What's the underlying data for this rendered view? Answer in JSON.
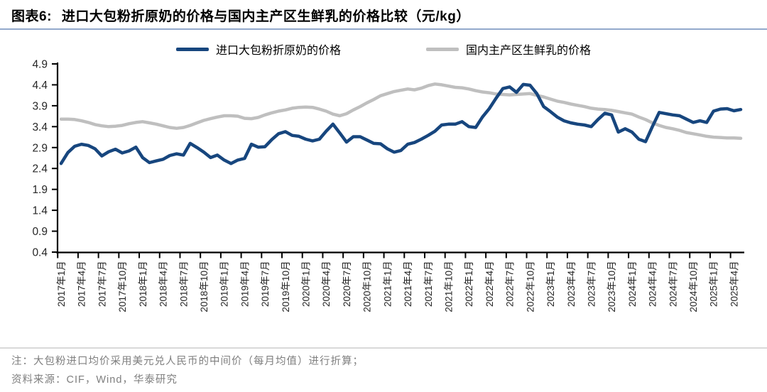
{
  "header": {
    "figure_label": "图表6:",
    "title": "进口大包粉折原奶的价格与国内主产区生鲜乳的价格比较（元/kg）"
  },
  "legend": {
    "import_label": "进口大包粉折原奶的价格",
    "domestic_label": "国内主产区生鲜乳的价格"
  },
  "colors": {
    "import_line": "#17467e",
    "domestic_line": "#bfbfbf",
    "axis": "#000000",
    "tick_text": "#262626",
    "title_underline": "#93a9cc",
    "footer_text": "#7f7f7f"
  },
  "footer": {
    "note": "注：大包粉进口均价采用美元兑人民币的中间价（每月均值）进行折算；",
    "source": "资料来源：CIF，Wind，华泰研究"
  },
  "chart_data": {
    "type": "line",
    "title": "进口大包粉折原奶的价格与国内主产区生鲜乳的价格比较（元/kg）",
    "x_unit": "month",
    "x_start": "2017-01",
    "x_end": "2025-05",
    "grid": false,
    "legend_position": "top",
    "ylim": [
      0.4,
      4.9
    ],
    "y_ticks": [
      4.9,
      4.4,
      3.9,
      3.4,
      2.9,
      2.4,
      1.9,
      1.4,
      0.9,
      0.4
    ],
    "x_tick_interval_months": 3,
    "x_tick_labels": [
      "2017年1月",
      "2017年4月",
      "2017年7月",
      "2017年10月",
      "2018年1月",
      "2018年4月",
      "2018年7月",
      "2018年10月",
      "2019年1月",
      "2019年4月",
      "2019年7月",
      "2019年10月",
      "2020年1月",
      "2020年4月",
      "2020年7月",
      "2020年10月",
      "2021年1月",
      "2021年4月",
      "2021年7月",
      "2021年10月",
      "2022年1月",
      "2022年4月",
      "2022年7月",
      "2022年10月",
      "2023年1月",
      "2023年4月",
      "2023年7月",
      "2023年10月",
      "2024年1月",
      "2024年4月",
      "2024年7月",
      "2024年10月",
      "2025年1月",
      "2025年4月"
    ],
    "series": [
      {
        "name": "进口大包粉折原奶的价格",
        "color": "#17467e",
        "line_width": 4.5,
        "values": [
          2.52,
          2.78,
          2.93,
          2.98,
          2.95,
          2.87,
          2.7,
          2.8,
          2.86,
          2.77,
          2.82,
          2.91,
          2.66,
          2.54,
          2.58,
          2.62,
          2.71,
          2.75,
          2.72,
          3.0,
          2.9,
          2.79,
          2.66,
          2.72,
          2.6,
          2.52,
          2.6,
          2.64,
          2.98,
          2.91,
          2.92,
          3.09,
          3.23,
          3.28,
          3.19,
          3.17,
          3.1,
          3.06,
          3.1,
          3.29,
          3.46,
          3.25,
          3.03,
          3.16,
          3.16,
          3.08,
          3.0,
          2.99,
          2.87,
          2.79,
          2.83,
          2.98,
          3.02,
          3.1,
          3.19,
          3.29,
          3.44,
          3.46,
          3.46,
          3.52,
          3.4,
          3.38,
          3.63,
          3.83,
          4.08,
          4.31,
          4.35,
          4.22,
          4.41,
          4.39,
          4.19,
          3.88,
          3.76,
          3.63,
          3.54,
          3.49,
          3.46,
          3.44,
          3.4,
          3.57,
          3.72,
          3.68,
          3.27,
          3.35,
          3.27,
          3.1,
          3.04,
          3.4,
          3.74,
          3.71,
          3.68,
          3.66,
          3.58,
          3.5,
          3.54,
          3.5,
          3.77,
          3.82,
          3.83,
          3.78,
          3.81
        ]
      },
      {
        "name": "国内主产区生鲜乳的价格",
        "color": "#bfbfbf",
        "line_width": 4.5,
        "values": [
          3.58,
          3.58,
          3.57,
          3.54,
          3.5,
          3.45,
          3.42,
          3.4,
          3.41,
          3.43,
          3.47,
          3.5,
          3.52,
          3.49,
          3.46,
          3.42,
          3.38,
          3.36,
          3.38,
          3.43,
          3.49,
          3.55,
          3.59,
          3.63,
          3.66,
          3.66,
          3.65,
          3.6,
          3.59,
          3.62,
          3.68,
          3.73,
          3.77,
          3.8,
          3.84,
          3.86,
          3.87,
          3.86,
          3.82,
          3.77,
          3.7,
          3.66,
          3.71,
          3.8,
          3.88,
          3.97,
          4.05,
          4.14,
          4.19,
          4.24,
          4.27,
          4.3,
          4.28,
          4.32,
          4.38,
          4.42,
          4.4,
          4.37,
          4.34,
          4.33,
          4.3,
          4.26,
          4.23,
          4.21,
          4.18,
          4.17,
          4.16,
          4.17,
          4.18,
          4.19,
          4.15,
          4.11,
          4.06,
          4.01,
          3.98,
          3.94,
          3.91,
          3.88,
          3.84,
          3.82,
          3.81,
          3.79,
          3.76,
          3.73,
          3.7,
          3.63,
          3.57,
          3.49,
          3.43,
          3.38,
          3.35,
          3.31,
          3.26,
          3.23,
          3.2,
          3.17,
          3.15,
          3.14,
          3.13,
          3.13,
          3.12
        ]
      }
    ]
  }
}
